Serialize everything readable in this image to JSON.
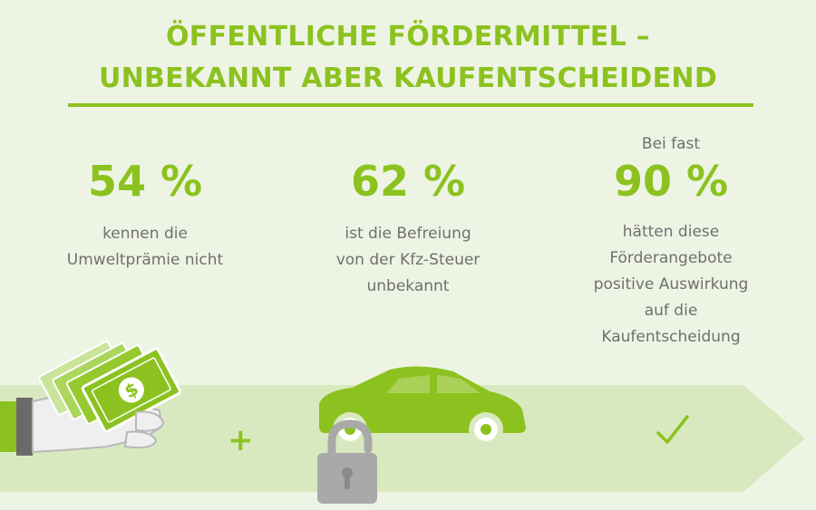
{
  "title": {
    "line1": "ÖFFENTLICHE FÖRDERMITTEL –",
    "line2": "UNBEKANNT ABER KAUFENTSCHEIDEND"
  },
  "stats": [
    {
      "prefix": "",
      "value": "54 %",
      "lines": [
        "kennen die",
        "Umweltprämie nicht"
      ]
    },
    {
      "prefix": "",
      "value": "62 %",
      "lines": [
        "ist die Befreiung",
        "von der Kfz-Steuer",
        "unbekannt"
      ]
    },
    {
      "prefix": "Bei fast",
      "value": "90 %",
      "lines": [
        "hätten diese",
        "Förderangebote",
        "positive Auswirkung",
        "auf die",
        "Kaufentscheidung"
      ]
    }
  ],
  "band": {
    "plus": "+",
    "icons": [
      "money-in-hand-icon",
      "car-icon",
      "padlock-icon",
      "checkmark-icon"
    ]
  },
  "colors": {
    "accent": "#8cc21f",
    "band": "#d9e9bf",
    "background": "#eef4e4",
    "text": "#6f6f6f",
    "lock": "#a9a9a9"
  }
}
